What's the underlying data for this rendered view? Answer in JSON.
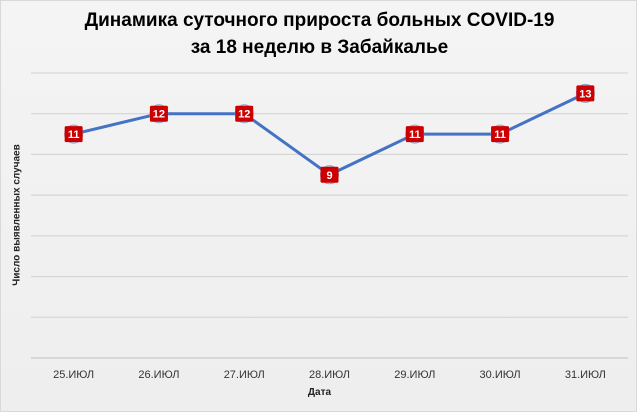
{
  "chart_data": {
    "type": "line",
    "title_line1": "Динамика суточного прироста больных COVID-19",
    "title_line2": "за 18 неделю в Забайкалье",
    "xlabel": "Дата",
    "ylabel": "Число выявленных случаев",
    "categories": [
      "25.ИЮЛ",
      "26.ИЮЛ",
      "27.ИЮЛ",
      "28.ИЮЛ",
      "29.ИЮЛ",
      "30.ИЮЛ",
      "31.ИЮЛ"
    ],
    "series": [
      {
        "values": [
          11,
          12,
          12,
          9,
          11,
          11,
          13
        ],
        "color": "#4472c4"
      }
    ],
    "marker_color": "#cc0000",
    "ylim": [
      0,
      14
    ],
    "y_gridlines": [
      0,
      2,
      4,
      6,
      8,
      10,
      12,
      14
    ],
    "grid": true,
    "legend": "none"
  }
}
